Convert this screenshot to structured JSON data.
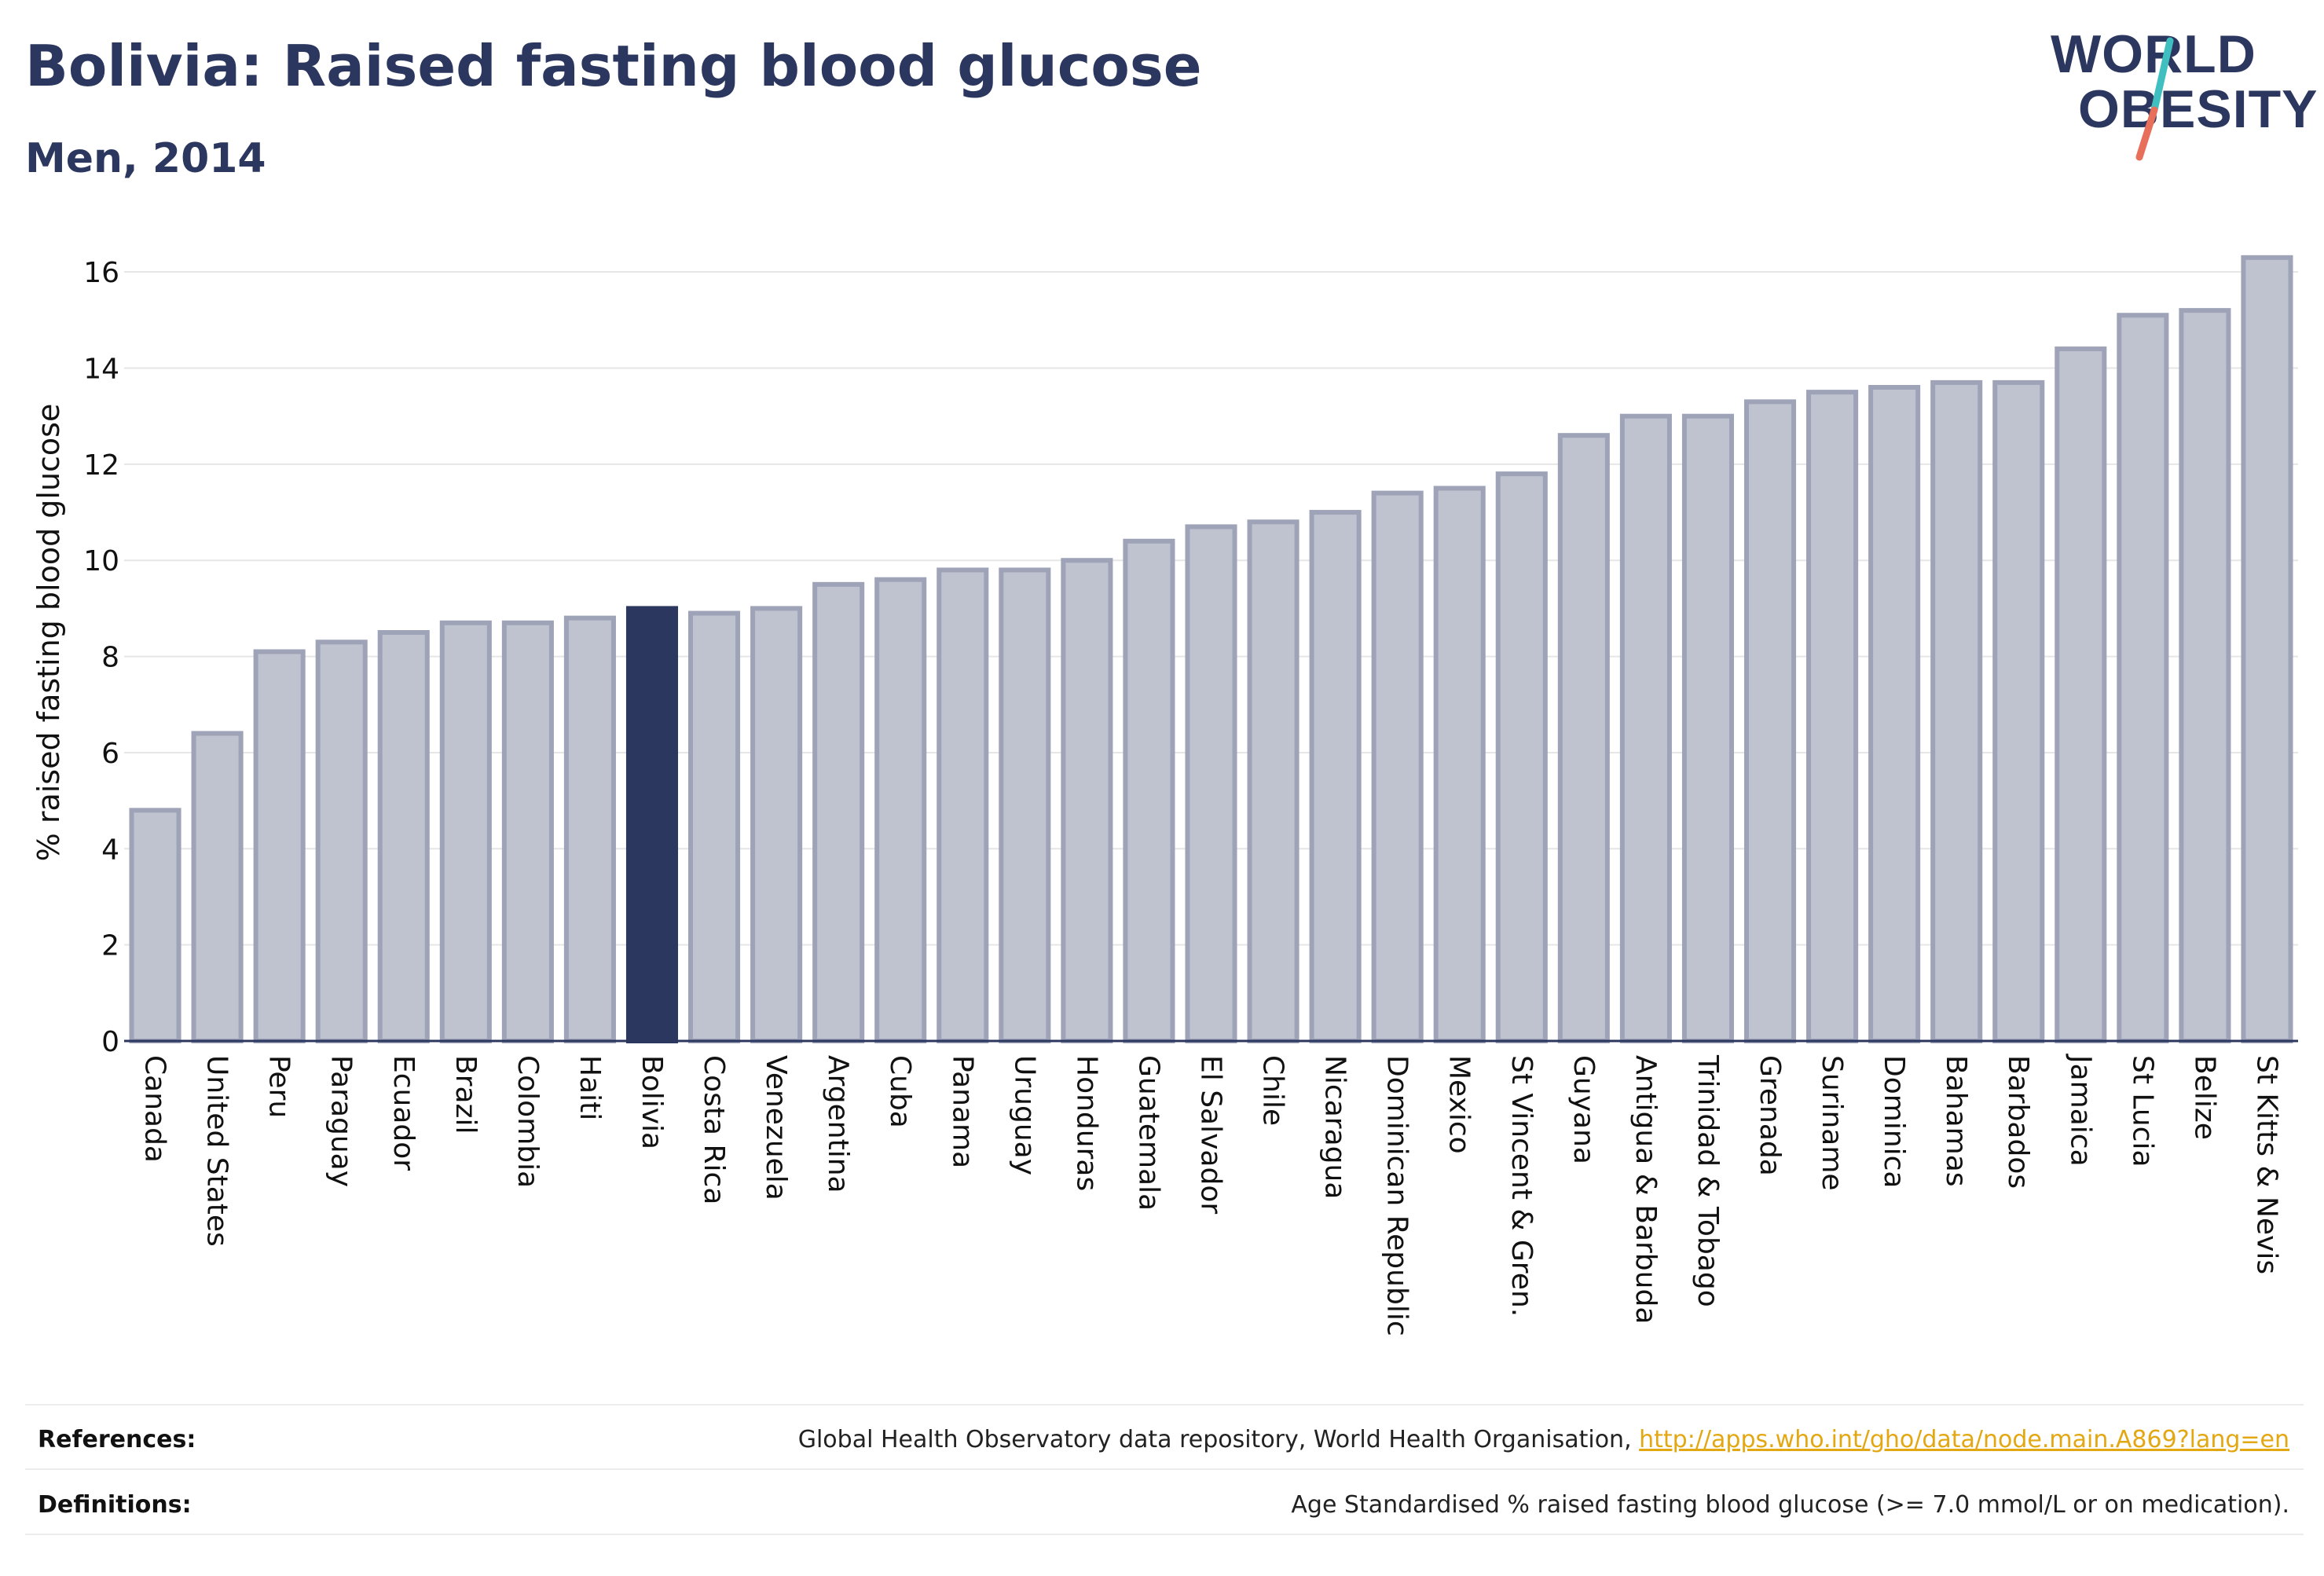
{
  "header": {
    "title": "Bolivia: Raised fasting blood glucose",
    "subtitle": "Men, 2014"
  },
  "logo": {
    "line1": "WORLD",
    "line2": "OBESITY",
    "accent_teal": "#3fbfbf",
    "accent_coral": "#e8705a"
  },
  "colors": {
    "bar_fill": "#bfc2cf",
    "bar_stroke": "#9ea3b8",
    "highlight": "#2c375f",
    "grid": "#e6e6e6",
    "text": "#111111"
  },
  "chart_data": {
    "type": "bar",
    "title": "",
    "ylabel": "% raised fasting blood glucose",
    "xlabel": "",
    "ylim": [
      0,
      17
    ],
    "yticks": [
      0,
      2,
      4,
      6,
      8,
      10,
      12,
      14,
      16
    ],
    "grid": true,
    "highlight": "Bolivia",
    "categories": [
      "Canada",
      "United States",
      "Peru",
      "Paraguay",
      "Ecuador",
      "Brazil",
      "Colombia",
      "Haiti",
      "Bolivia",
      "Costa Rica",
      "Venezuela",
      "Argentina",
      "Cuba",
      "Panama",
      "Uruguay",
      "Honduras",
      "Guatemala",
      "El Salvador",
      "Chile",
      "Nicaragua",
      "Dominican Republic",
      "Mexico",
      "St Vincent & Gren.",
      "Guyana",
      "Antigua & Barbuda",
      "Trinidad & Tobago",
      "Grenada",
      "Suriname",
      "Dominica",
      "Bahamas",
      "Barbados",
      "Jamaica",
      "St Lucia",
      "Belize",
      "St Kitts & Nevis"
    ],
    "values": [
      4.8,
      6.4,
      8.1,
      8.3,
      8.5,
      8.7,
      8.7,
      8.8,
      9.0,
      8.9,
      9.0,
      9.5,
      9.6,
      9.8,
      9.8,
      10.0,
      10.4,
      10.7,
      10.8,
      11.0,
      11.4,
      11.5,
      11.8,
      12.6,
      13.0,
      13.0,
      13.3,
      13.5,
      13.6,
      13.7,
      13.7,
      14.4,
      15.1,
      15.2,
      16.3
    ]
  },
  "footer": {
    "references_label": "References:",
    "references_text": "Global Health Observatory data repository, World Health Organisation, ",
    "references_link": "http://apps.who.int/gho/data/node.main.A869?lang=en",
    "definitions_label": "Definitions:",
    "definitions_text": "Age Standardised % raised fasting blood glucose (>= 7.0 mmol/L or on medication)."
  }
}
